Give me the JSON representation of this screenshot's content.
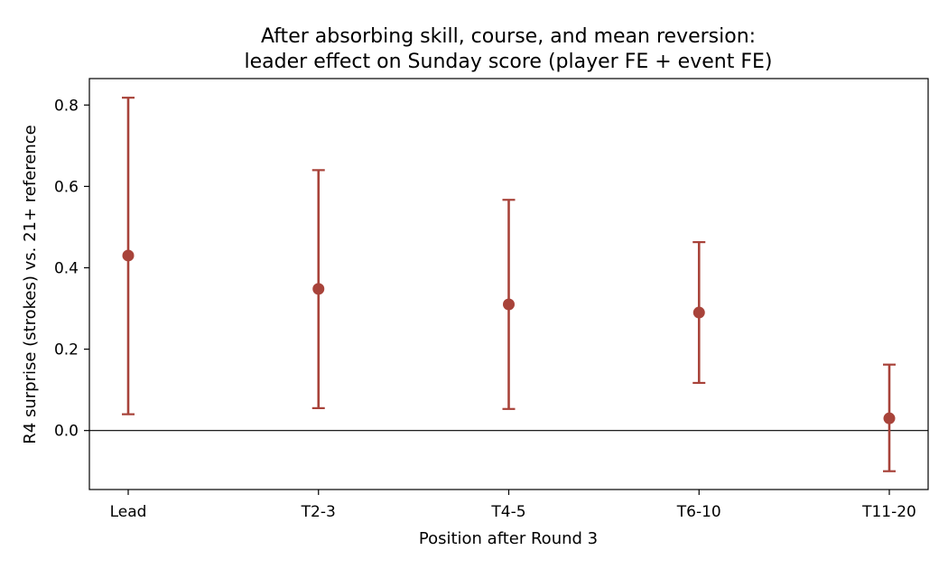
{
  "chart_data": {
    "type": "scatter",
    "title_lines": [
      "After absorbing skill, course, and mean reversion:",
      "leader effect on Sunday score (player FE + event FE)"
    ],
    "xlabel": "Position after Round 3",
    "ylabel": "R4 surprise (strokes) vs. 21+ reference",
    "categories": [
      "Lead",
      "T2-3",
      "T4-5",
      "T6-10",
      "T11-20"
    ],
    "values": [
      0.43,
      0.348,
      0.31,
      0.29,
      0.03
    ],
    "ci_low": [
      0.04,
      0.055,
      0.053,
      0.117,
      -0.1
    ],
    "ci_high": [
      0.818,
      0.64,
      0.567,
      0.463,
      0.162
    ],
    "ylim": [
      -0.145,
      0.865
    ],
    "yticks": [
      0.0,
      0.2,
      0.4,
      0.6,
      0.8
    ],
    "ytick_labels": [
      "0.0",
      "0.2",
      "0.4",
      "0.6",
      "0.8"
    ],
    "reference_line_y": 0.0,
    "color": "#a8433a",
    "grid": false,
    "legend": "none"
  }
}
